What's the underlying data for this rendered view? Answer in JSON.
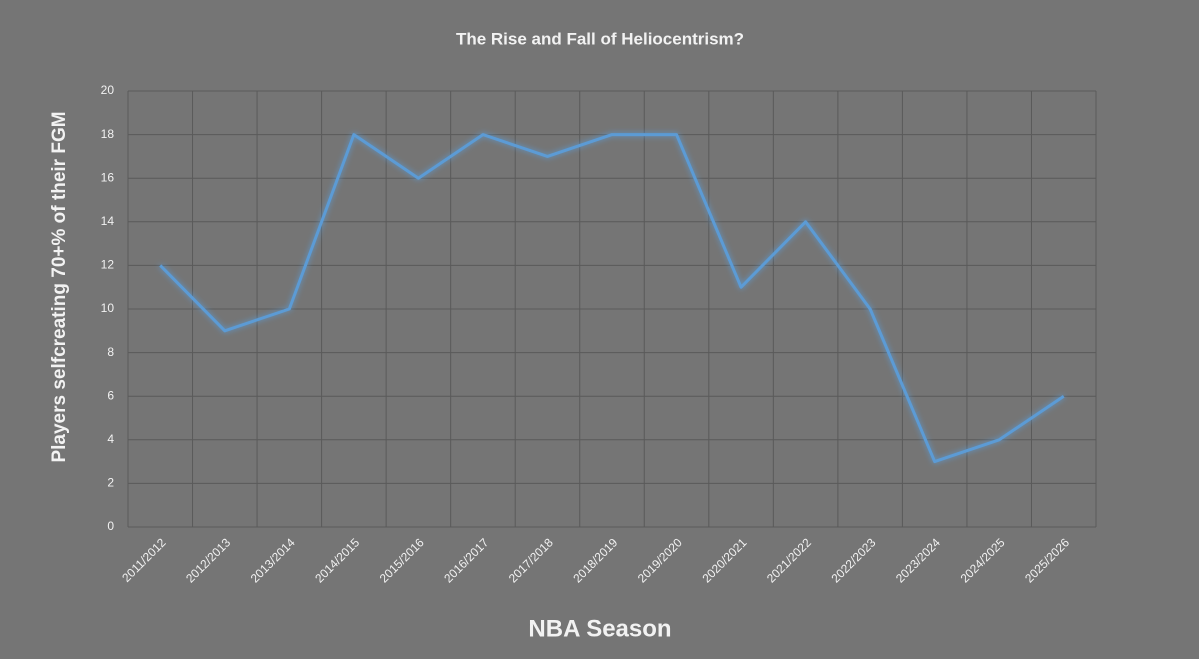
{
  "chart_data": {
    "type": "line",
    "title": "The Rise and Fall of Heliocentrism?",
    "x_label": "NBA Season",
    "y_label": "Players selfcreating 70+% of their FGM",
    "categories": [
      "2011/2012",
      "2012/2013",
      "2013/2014",
      "2014/2015",
      "2015/2016",
      "2016/2017",
      "2017/2018",
      "2018/2019",
      "2019/2020",
      "2020/2021",
      "2021/2022",
      "2022/2023",
      "2023/2024",
      "2024/2025",
      "2025/2026"
    ],
    "series": [
      {
        "name": "Players",
        "color": "#5b9bd5",
        "values": [
          12,
          9,
          10,
          18,
          16,
          18,
          17,
          18,
          18,
          11,
          14,
          10,
          3,
          4,
          6
        ]
      }
    ],
    "ylim": [
      0,
      20
    ],
    "yticks": [
      0,
      2,
      4,
      6,
      8,
      10,
      12,
      14,
      16,
      18,
      20
    ],
    "grid": true
  }
}
